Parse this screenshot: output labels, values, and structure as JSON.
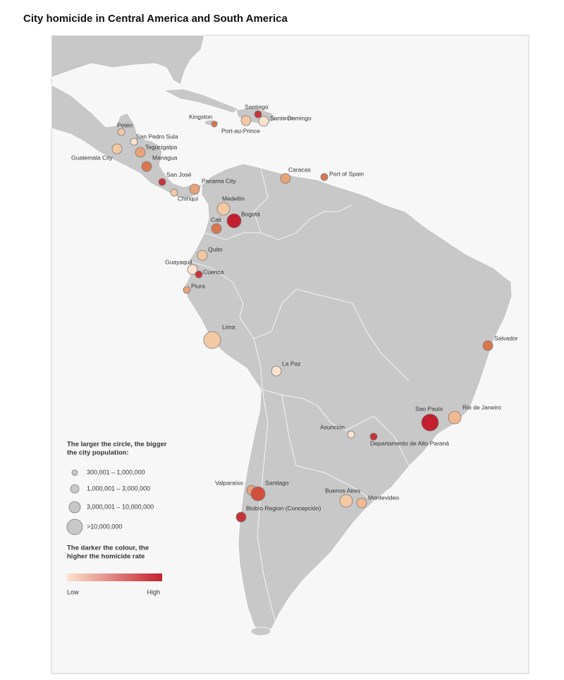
{
  "title": "City homicide in Central America and South America",
  "cities": [
    {
      "name": "Petén",
      "color": "#f3c9a4"
    },
    {
      "name": "San Pedro Sula",
      "color": "#fbe3cd"
    },
    {
      "name": "Tegucigalpa",
      "color": "#e8a27a"
    },
    {
      "name": "Guatemala City",
      "color": "#f3c9a4"
    },
    {
      "name": "Managua",
      "color": "#d9764f"
    },
    {
      "name": "San José",
      "color": "#c8333a"
    },
    {
      "name": "Chiriquí",
      "color": "#f3c9a4"
    },
    {
      "name": "Panama City",
      "color": "#e8a27a"
    },
    {
      "name": "Kingston",
      "color": "#d9764f"
    },
    {
      "name": "Port-au-Prince",
      "color": "#f3c9a4"
    },
    {
      "name": "Santiago",
      "color": "#c8333a"
    },
    {
      "name": "Santo Domingo",
      "color": "#fbe3cd"
    },
    {
      "name": "Caracas",
      "color": "#e8a27a"
    },
    {
      "name": "Port of Spain",
      "color": "#d9764f"
    },
    {
      "name": "Medellín",
      "color": "#f3c9a4"
    },
    {
      "name": "Bogotá",
      "color": "#c3202e"
    },
    {
      "name": "Cali",
      "color": "#d9764f"
    },
    {
      "name": "Quito",
      "color": "#f3c9a4"
    },
    {
      "name": "Guayaquil",
      "color": "#fbe3cd"
    },
    {
      "name": "Cuenca",
      "color": "#c8333a"
    },
    {
      "name": "Piura",
      "color": "#e8a27a"
    },
    {
      "name": "Lima",
      "color": "#f3c9a4"
    },
    {
      "name": "La Paz",
      "color": "#fbe3cd"
    },
    {
      "name": "Salvador",
      "color": "#d9764f"
    },
    {
      "name": "Sao Paulo",
      "color": "#c3202e"
    },
    {
      "name": "Rio de Janeiro",
      "color": "#f0b990"
    },
    {
      "name": "Asunción",
      "color": "#fbe3cd"
    },
    {
      "name": "Departamento de Alto Paraná",
      "color": "#c8333a"
    },
    {
      "name": "Valparaíso",
      "color": "#e8a27a"
    },
    {
      "name": "Santiago",
      "color": "#d0503d"
    },
    {
      "name": "Biobío Region (Concepción)",
      "color": "#c8333a"
    },
    {
      "name": "Buenos Aires",
      "color": "#f3c9a4"
    },
    {
      "name": "Montevideo",
      "color": "#f0b990"
    }
  ],
  "legend": {
    "size_title": [
      "The larger the circle, the bigger",
      "the city population:"
    ],
    "sizes": [
      "300,001 – 1,000,000",
      "1,000,001 – 3,000,000",
      "3,000,001 – 10,000,000",
      ">10,000,000"
    ],
    "color_title": [
      "The darker the colour, the",
      "higher the homicide rate"
    ],
    "low": "Low",
    "high": "High",
    "low_color": "#fbe3cd",
    "high_color": "#c3202e"
  }
}
